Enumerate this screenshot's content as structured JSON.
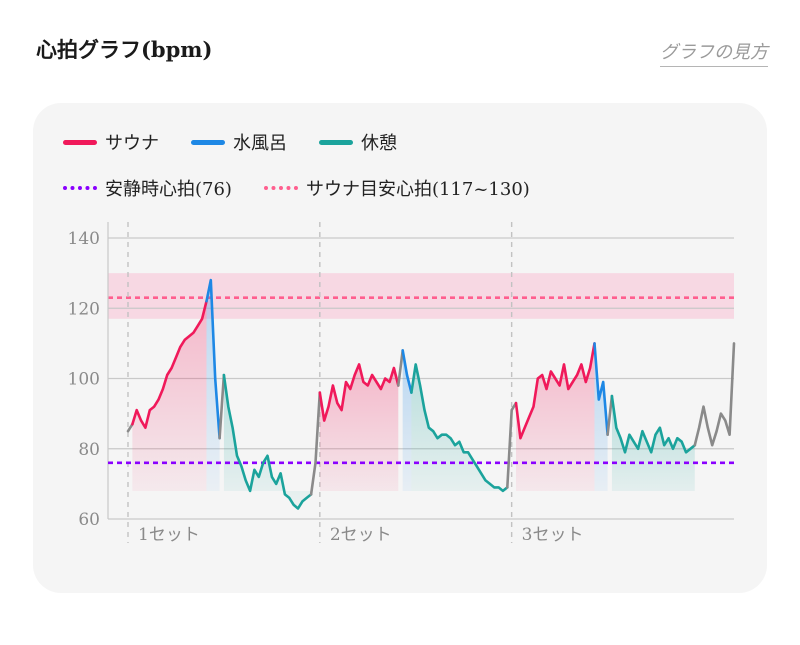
{
  "header": {
    "title": "心拍グラフ(bpm)",
    "guide_link": "グラフの見方"
  },
  "colors": {
    "sauna": "#f0195a",
    "mizuburo": "#1e88e5",
    "kyukei": "#1ba39c",
    "transition": "#8a8a8a",
    "resting": "#8a00ff",
    "target": "#ff5f8f"
  },
  "legend": {
    "items": [
      {
        "label": "サウナ",
        "style": "solid",
        "color": "#f0195a"
      },
      {
        "label": "水風呂",
        "style": "solid",
        "color": "#1e88e5"
      },
      {
        "label": "休憩",
        "style": "solid",
        "color": "#1ba39c"
      }
    ],
    "lines": [
      {
        "label": "安静時心拍(76)",
        "style": "dotted",
        "color": "#8a00ff"
      },
      {
        "label": "サウナ目安心拍(117~130)",
        "style": "dotted",
        "color": "#ff5f8f"
      }
    ]
  },
  "chart_data": {
    "type": "line",
    "title": "心拍グラフ(bpm)",
    "ylim": [
      60,
      140
    ],
    "yticks": [
      "140",
      "120",
      "100",
      "80",
      "60"
    ],
    "resting_hr": 76,
    "target_zone": [
      117,
      130
    ],
    "target_line": 123,
    "set_labels": [
      "1セット",
      "2セット",
      "3セット"
    ],
    "segments": [
      {
        "phase": "transition",
        "points": [
          [
            0,
            85
          ],
          [
            1,
            87
          ]
        ]
      },
      {
        "phase": "sauna",
        "points": [
          [
            1,
            87
          ],
          [
            2,
            91
          ],
          [
            3,
            88
          ],
          [
            4,
            86
          ],
          [
            5,
            91
          ],
          [
            6,
            92
          ],
          [
            7,
            94
          ],
          [
            8,
            97
          ],
          [
            9,
            101
          ],
          [
            10,
            103
          ],
          [
            11,
            106
          ],
          [
            12,
            109
          ],
          [
            13,
            111
          ],
          [
            14,
            112
          ],
          [
            15,
            113
          ],
          [
            16,
            115
          ],
          [
            17,
            117
          ],
          [
            18,
            122
          ]
        ]
      },
      {
        "phase": "mizuburo",
        "points": [
          [
            18,
            122
          ],
          [
            19,
            128
          ],
          [
            20,
            100
          ],
          [
            21,
            83
          ]
        ]
      },
      {
        "phase": "transition",
        "points": [
          [
            21,
            83
          ],
          [
            22,
            101
          ]
        ]
      },
      {
        "phase": "kyukei",
        "points": [
          [
            22,
            101
          ],
          [
            23,
            92
          ],
          [
            24,
            86
          ],
          [
            25,
            78
          ],
          [
            26,
            75
          ],
          [
            27,
            71
          ],
          [
            28,
            68
          ],
          [
            29,
            74
          ],
          [
            30,
            72
          ],
          [
            31,
            76
          ],
          [
            32,
            78
          ],
          [
            33,
            72
          ],
          [
            34,
            70
          ],
          [
            35,
            73
          ],
          [
            36,
            67
          ],
          [
            37,
            66
          ],
          [
            38,
            64
          ],
          [
            39,
            63
          ],
          [
            40,
            65
          ],
          [
            41,
            66
          ],
          [
            42,
            67
          ]
        ]
      },
      {
        "phase": "transition",
        "points": [
          [
            42,
            67
          ],
          [
            43,
            76
          ],
          [
            44,
            96
          ]
        ]
      },
      {
        "phase": "sauna",
        "points": [
          [
            44,
            96
          ],
          [
            45,
            88
          ],
          [
            46,
            92
          ],
          [
            47,
            98
          ],
          [
            48,
            93
          ],
          [
            49,
            91
          ],
          [
            50,
            99
          ],
          [
            51,
            97
          ],
          [
            52,
            101
          ],
          [
            53,
            104
          ],
          [
            54,
            99
          ],
          [
            55,
            98
          ],
          [
            56,
            101
          ],
          [
            57,
            99
          ],
          [
            58,
            97
          ],
          [
            59,
            100
          ],
          [
            60,
            99
          ],
          [
            61,
            103
          ],
          [
            62,
            98
          ]
        ]
      },
      {
        "phase": "transition",
        "points": [
          [
            62,
            98
          ],
          [
            63,
            108
          ]
        ]
      },
      {
        "phase": "mizuburo",
        "points": [
          [
            63,
            108
          ],
          [
            64,
            101
          ],
          [
            65,
            96
          ]
        ]
      },
      {
        "phase": "kyukei",
        "points": [
          [
            65,
            96
          ],
          [
            66,
            104
          ],
          [
            67,
            98
          ],
          [
            68,
            91
          ],
          [
            69,
            86
          ],
          [
            70,
            85
          ],
          [
            71,
            83
          ],
          [
            72,
            84
          ],
          [
            73,
            84
          ],
          [
            74,
            83
          ],
          [
            75,
            81
          ],
          [
            76,
            82
          ],
          [
            77,
            79
          ],
          [
            78,
            79
          ],
          [
            79,
            77
          ],
          [
            80,
            75
          ],
          [
            81,
            73
          ],
          [
            82,
            71
          ],
          [
            83,
            70
          ],
          [
            84,
            69
          ],
          [
            85,
            69
          ],
          [
            86,
            68
          ],
          [
            87,
            69
          ]
        ]
      },
      {
        "phase": "transition",
        "points": [
          [
            87,
            69
          ],
          [
            88,
            91
          ],
          [
            89,
            93
          ]
        ]
      },
      {
        "phase": "sauna",
        "points": [
          [
            89,
            93
          ],
          [
            90,
            83
          ],
          [
            91,
            86
          ],
          [
            92,
            89
          ],
          [
            93,
            92
          ],
          [
            94,
            100
          ],
          [
            95,
            101
          ],
          [
            96,
            97
          ],
          [
            97,
            102
          ],
          [
            98,
            100
          ],
          [
            99,
            98
          ],
          [
            100,
            104
          ],
          [
            101,
            97
          ],
          [
            102,
            99
          ],
          [
            103,
            101
          ],
          [
            104,
            104
          ],
          [
            105,
            99
          ],
          [
            106,
            103
          ],
          [
            107,
            110
          ]
        ]
      },
      {
        "phase": "mizuburo",
        "points": [
          [
            107,
            110
          ],
          [
            108,
            94
          ],
          [
            109,
            99
          ],
          [
            110,
            84
          ]
        ]
      },
      {
        "phase": "transition",
        "points": [
          [
            110,
            84
          ],
          [
            111,
            95
          ]
        ]
      },
      {
        "phase": "kyukei",
        "points": [
          [
            111,
            95
          ],
          [
            112,
            86
          ],
          [
            113,
            83
          ],
          [
            114,
            79
          ],
          [
            115,
            84
          ],
          [
            116,
            82
          ],
          [
            117,
            80
          ],
          [
            118,
            85
          ],
          [
            119,
            82
          ],
          [
            120,
            79
          ],
          [
            121,
            84
          ],
          [
            122,
            86
          ],
          [
            123,
            81
          ],
          [
            124,
            83
          ],
          [
            125,
            80
          ],
          [
            126,
            83
          ],
          [
            127,
            82
          ],
          [
            128,
            79
          ],
          [
            129,
            80
          ],
          [
            130,
            81
          ]
        ]
      },
      {
        "phase": "transition",
        "points": [
          [
            130,
            81
          ],
          [
            131,
            86
          ],
          [
            132,
            92
          ],
          [
            133,
            86
          ],
          [
            134,
            81
          ],
          [
            135,
            85
          ],
          [
            136,
            90
          ],
          [
            137,
            88
          ],
          [
            138,
            84
          ],
          [
            139,
            110
          ]
        ]
      }
    ]
  }
}
